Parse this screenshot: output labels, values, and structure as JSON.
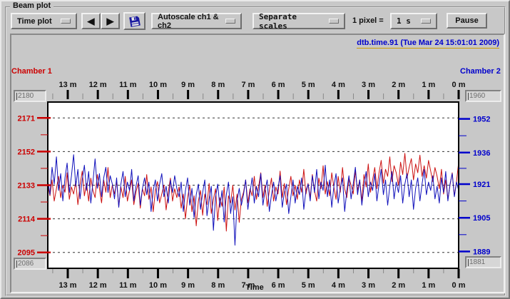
{
  "window": {
    "group_label": "Beam plot"
  },
  "toolbar": {
    "plot_type": "Time plot",
    "prev_icon": "◀",
    "next_icon": "▶",
    "save_icon": "floppy-disk",
    "autoscale": "Autoscale ch1 & ch2",
    "scales": "Separate scales",
    "pixel_label": "1 pixel =",
    "interval": "1 s",
    "pause": "Pause"
  },
  "plot": {
    "title": "dtb.time.91 (Tue Mar 24 15:01:01 2009)",
    "xlabel": "Time",
    "left_axis": {
      "label": "Chamber 1",
      "color": "#cc0000",
      "max_entry": "2180",
      "min_entry": "2086"
    },
    "right_axis": {
      "label": "Chamber 2",
      "color": "#0000cc",
      "max_entry": "1960",
      "min_entry": "1881"
    }
  },
  "chart_data": {
    "type": "line",
    "title": "dtb.time.91 (Tue Mar 24 15:01:01 2009)",
    "xlabel": "Time",
    "grid": "horizontal-dashed",
    "x_axis": {
      "tick_minutes": [
        13,
        12,
        11,
        10,
        9,
        8,
        7,
        6,
        5,
        4,
        3,
        2,
        1,
        0
      ],
      "tick_labels": [
        "13 m",
        "12 m",
        "11 m",
        "10 m",
        "9 m",
        "8 m",
        "7 m",
        "6 m",
        "5 m",
        "4 m",
        "3 m",
        "2 m",
        "1 m",
        "0 m"
      ],
      "minor_step_minutes": 0.5,
      "xlim_minutes": [
        13.66,
        0
      ]
    },
    "left_axis": {
      "label": "Chamber 1",
      "color": "#cc0000",
      "ylim": [
        2086,
        2180
      ],
      "yticks": [
        2171,
        2152,
        2133,
        2114,
        2095
      ]
    },
    "right_axis": {
      "label": "Chamber 2",
      "color": "#0000cc",
      "ylim": [
        1881,
        1960
      ],
      "yticks": [
        1952,
        1936,
        1921,
        1905,
        1889
      ]
    },
    "series": [
      {
        "name": "Chamber 1",
        "axis": "left",
        "color": "#cc1111",
        "values": [
          2133,
          2127,
          2136,
          2124,
          2131,
          2138,
          2126,
          2133,
          2129,
          2140,
          2125,
          2132,
          2128,
          2135,
          2122,
          2133,
          2141,
          2127,
          2134,
          2124,
          2137,
          2130,
          2126,
          2139,
          2131,
          2123,
          2136,
          2129,
          2143,
          2126,
          2133,
          2128,
          2135,
          2121,
          2132,
          2126,
          2138,
          2124,
          2130,
          2136,
          2122,
          2129,
          2134,
          2120,
          2131,
          2127,
          2139,
          2125,
          2132,
          2118,
          2130,
          2135,
          2123,
          2128,
          2133,
          2119,
          2129,
          2137,
          2124,
          2131,
          2126,
          2132,
          2120,
          2128,
          2114,
          2126,
          2133,
          2118,
          2127,
          2110,
          2124,
          2130,
          2116,
          2128,
          2122,
          2134,
          2117,
          2125,
          2131,
          2113,
          2126,
          2121,
          2132,
          2107,
          2127,
          2123,
          2133,
          2119,
          2128,
          2112,
          2125,
          2129,
          2136,
          2123,
          2131,
          2127,
          2138,
          2125,
          2132,
          2140,
          2126,
          2133,
          2121,
          2130,
          2137,
          2124,
          2132,
          2128,
          2141,
          2126,
          2134,
          2122,
          2131,
          2138,
          2127,
          2133,
          2125,
          2136,
          2129,
          2142,
          2128,
          2134,
          2126,
          2139,
          2130,
          2124,
          2137,
          2131,
          2144,
          2128,
          2135,
          2127,
          2140,
          2132,
          2125,
          2138,
          2129,
          2143,
          2131,
          2126,
          2137,
          2133,
          2128,
          2141,
          2130,
          2136,
          2124,
          2139,
          2132,
          2145,
          2129,
          2136,
          2143,
          2131,
          2140,
          2147,
          2134,
          2142,
          2138,
          2149,
          2135,
          2144,
          2140,
          2133,
          2146,
          2139,
          2151,
          2137,
          2143,
          2148,
          2136,
          2145,
          2140,
          2150,
          2138,
          2144,
          2137,
          2147,
          2141,
          2135,
          2143,
          2138,
          2131,
          2142,
          2128,
          2136,
          2125,
          2133,
          2140,
          2127,
          2135,
          2146
        ]
      },
      {
        "name": "Chamber 2",
        "axis": "right",
        "color": "#1111bb",
        "values": [
          1923,
          1916,
          1929,
          1921,
          1934,
          1918,
          1926,
          1913,
          1924,
          1931,
          1917,
          1925,
          1935,
          1920,
          1928,
          1914,
          1923,
          1930,
          1918,
          1927,
          1912,
          1922,
          1933,
          1919,
          1926,
          1915,
          1924,
          1929,
          1917,
          1925,
          1921,
          1914,
          1924,
          1910,
          1921,
          1927,
          1915,
          1922,
          1918,
          1928,
          1913,
          1920,
          1925,
          1911,
          1919,
          1924,
          1916,
          1922,
          1908,
          1918,
          1923,
          1913,
          1921,
          1926,
          1915,
          1920,
          1912,
          1923,
          1917,
          1925,
          1919,
          1915,
          1922,
          1908,
          1918,
          1924,
          1911,
          1919,
          1905,
          1916,
          1921,
          1909,
          1917,
          1923,
          1906,
          1914,
          1920,
          1899,
          1915,
          1921,
          1910,
          1918,
          1903,
          1916,
          1922,
          1907,
          1915,
          1892,
          1913,
          1919,
          1911,
          1916,
          1923,
          1909,
          1917,
          1924,
          1912,
          1920,
          1915,
          1926,
          1911,
          1918,
          1923,
          1908,
          1916,
          1922,
          1913,
          1919,
          1925,
          1910,
          1917,
          1921,
          1907,
          1915,
          1923,
          1912,
          1920,
          1916,
          1924,
          1909,
          1918,
          1921,
          1913,
          1925,
          1917,
          1928,
          1914,
          1922,
          1918,
          1930,
          1915,
          1923,
          1910,
          1920,
          1926,
          1912,
          1919,
          1924,
          1908,
          1918,
          1925,
          1914,
          1921,
          1929,
          1916,
          1923,
          1911,
          1920,
          1927,
          1915,
          1922,
          1918,
          1926,
          1913,
          1921,
          1928,
          1916,
          1923,
          1911,
          1920,
          1927,
          1914,
          1922,
          1917,
          1925,
          1912,
          1921,
          1926,
          1915,
          1923,
          1909,
          1919,
          1924,
          1913,
          1921,
          1928,
          1916,
          1922,
          1918,
          1925,
          1914,
          1920,
          1912,
          1924,
          1917,
          1927,
          1913,
          1921,
          1926,
          1915,
          1922,
          1918
        ]
      }
    ]
  }
}
